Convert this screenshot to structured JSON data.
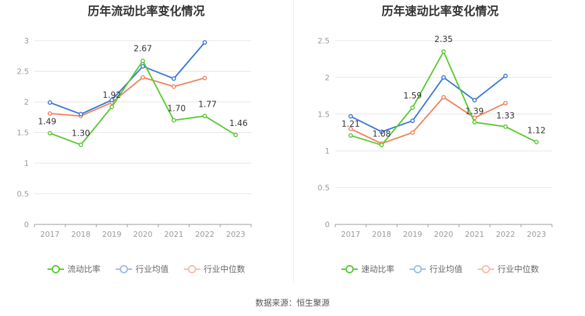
{
  "source_label": "数据来源：恒生聚源",
  "colors": {
    "company": "#5cc933",
    "industry_avg": "#3a78d8",
    "industry_median": "#f0845f",
    "grid": "#e6e6e6",
    "axis": "#999999"
  },
  "legend": {
    "company_current": "流动比率",
    "company_quick": "速动比率",
    "industry_avg": "行业均值",
    "industry_median": "行业中位数"
  },
  "chart_data": [
    {
      "type": "line",
      "title": "历年流动比率变化情况",
      "x": [
        "2017",
        "2018",
        "2019",
        "2020",
        "2021",
        "2022",
        "2023"
      ],
      "ylim": [
        0,
        3
      ],
      "yticks": [
        "0",
        "0.5",
        "1",
        "1.5",
        "2",
        "2.5",
        "3"
      ],
      "grid": true,
      "legend_position": "bottom",
      "series": [
        {
          "name": "流动比率",
          "values": [
            1.49,
            1.3,
            1.92,
            2.67,
            1.7,
            1.77,
            1.46
          ],
          "labels": [
            "1.49",
            "1.30",
            "1.92",
            "2.67",
            "1.70",
            "1.77",
            "1.46"
          ]
        },
        {
          "name": "行业均值",
          "values": [
            1.99,
            1.8,
            2.03,
            2.58,
            2.38,
            2.97,
            null
          ]
        },
        {
          "name": "行业中位数",
          "values": [
            1.81,
            1.77,
            1.99,
            2.4,
            2.25,
            2.39,
            null
          ]
        }
      ]
    },
    {
      "type": "line",
      "title": "历年速动比率变化情况",
      "x": [
        "2017",
        "2018",
        "2019",
        "2020",
        "2021",
        "2022",
        "2023"
      ],
      "ylim": [
        0,
        2.5
      ],
      "yticks": [
        "0",
        "0.5",
        "1",
        "1.5",
        "2",
        "2.5"
      ],
      "grid": true,
      "legend_position": "bottom",
      "series": [
        {
          "name": "速动比率",
          "values": [
            1.21,
            1.08,
            1.59,
            2.35,
            1.39,
            1.33,
            1.12
          ],
          "labels": [
            "1.21",
            "1.08",
            "1.59",
            "2.35",
            "1.39",
            "1.33",
            "1.12"
          ]
        },
        {
          "name": "行业均值",
          "values": [
            1.47,
            1.26,
            1.41,
            2.0,
            1.69,
            2.02,
            null
          ]
        },
        {
          "name": "行业中位数",
          "values": [
            1.3,
            1.1,
            1.25,
            1.73,
            1.45,
            1.65,
            null
          ]
        }
      ]
    }
  ]
}
